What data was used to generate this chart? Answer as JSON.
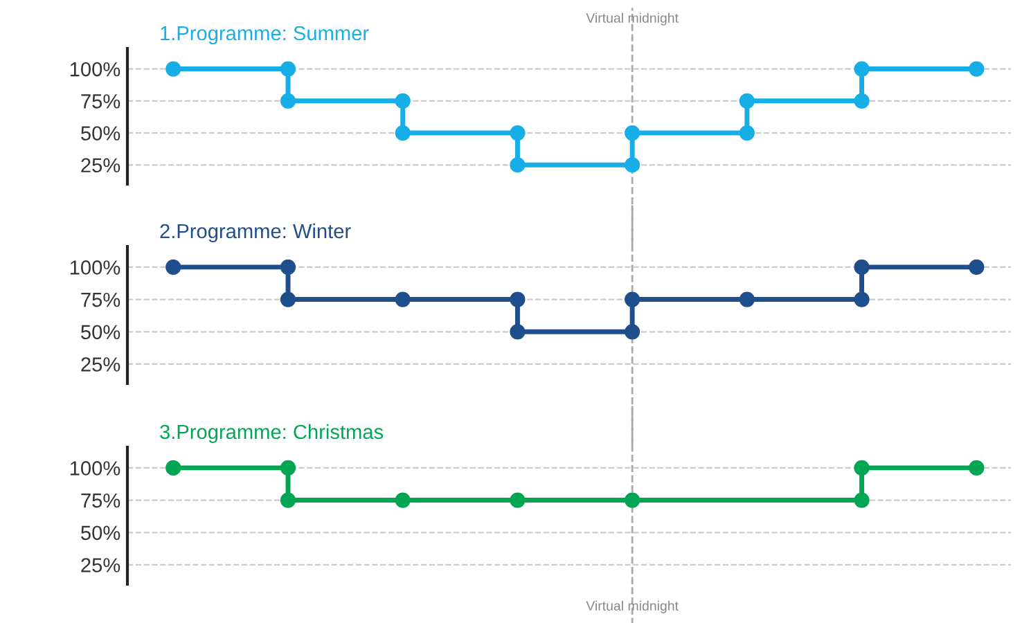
{
  "chart_data": [
    {
      "type": "step",
      "title": "1.Programme: Summer",
      "categories": [
        null,
        null,
        null,
        null,
        null,
        null,
        null,
        null
      ],
      "tick_labels": "y",
      "series": [
        {
          "color": "#17aee8",
          "values": [
            100,
            75,
            50,
            25,
            50,
            75,
            100,
            100
          ]
        },
        {
          "type": "scatter",
          "color": "#17aee8",
          "values": [
            null,
            100,
            75,
            50,
            25,
            50,
            75,
            null
          ]
        }
      ],
      "ylim": [
        10,
        116
      ],
      "yticks": [
        {
          "value": 25,
          "label": "25%"
        },
        {
          "value": 50,
          "label": "50%"
        },
        {
          "value": 75,
          "label": "75%"
        },
        {
          "value": 100,
          "label": "100%"
        }
      ],
      "grid": "y",
      "marker": "circle",
      "line_style": "solid",
      "annotations": [
        "Virtual midnight"
      ]
    },
    {
      "type": "step",
      "title": "2.Programme: Winter",
      "categories": [
        null,
        null,
        null,
        null,
        null,
        null,
        null,
        null
      ],
      "tick_labels": "y",
      "series": [
        {
          "color": "#1f4e8c",
          "values": [
            100,
            75,
            75,
            50,
            75,
            75,
            100,
            100
          ]
        },
        {
          "type": "scatter",
          "color": "#1f4e8c",
          "values": [
            null,
            100,
            null,
            75,
            50,
            null,
            75,
            null
          ]
        }
      ],
      "ylim": [
        10,
        116
      ],
      "yticks": [
        {
          "value": 25,
          "label": "25%"
        },
        {
          "value": 50,
          "label": "50%"
        },
        {
          "value": 75,
          "label": "75%"
        },
        {
          "value": 100,
          "label": "100%"
        }
      ],
      "grid": "y",
      "marker": "circle",
      "line_style": "solid"
    },
    {
      "type": "step",
      "title": "3.Programme: Christmas",
      "categories": [
        null,
        null,
        null,
        null,
        null,
        null,
        null,
        null
      ],
      "tick_labels": "y",
      "series": [
        {
          "color": "#00a651",
          "values": [
            100,
            75,
            75,
            75,
            75,
            null,
            100,
            100
          ]
        },
        {
          "type": "scatter",
          "color": "#00a651",
          "values": [
            null,
            100,
            null,
            null,
            null,
            null,
            75,
            null
          ]
        }
      ],
      "ylim": [
        10,
        116
      ],
      "yticks": [
        {
          "value": 25,
          "label": "25%"
        },
        {
          "value": 50,
          "label": "50%"
        },
        {
          "value": 75,
          "label": "75%"
        },
        {
          "value": 100,
          "label": "100%"
        }
      ],
      "grid": "y",
      "marker": "circle",
      "line_style": "solid",
      "annotations": [
        "Virtual midnight"
      ]
    }
  ]
}
